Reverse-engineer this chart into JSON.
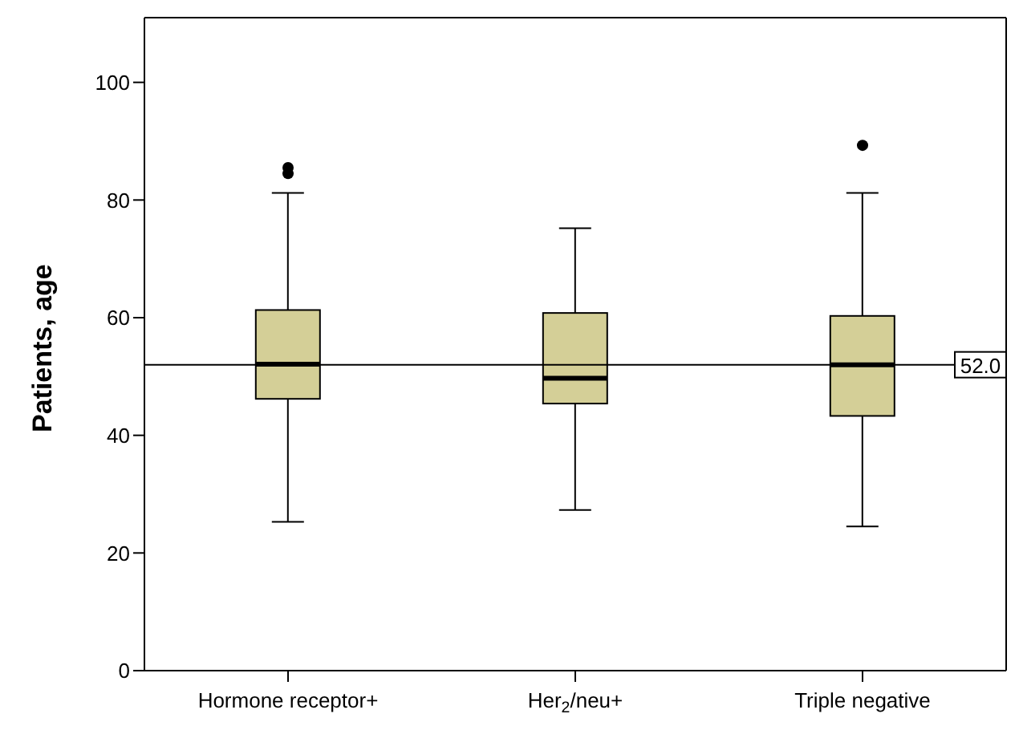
{
  "chart_data": {
    "type": "box",
    "ylabel": "Patients, age",
    "categories": [
      "Hormone receptor+",
      "Her$_{2}$/neu+",
      "Triple negative"
    ],
    "color": "#d4cf97",
    "boxes": [
      {
        "low": 25.3,
        "q1": 46.2,
        "median": 52.1,
        "q3": 61.3,
        "high": 81.2,
        "outliers": [
          84.5,
          85.5
        ]
      },
      {
        "low": 27.3,
        "q1": 45.4,
        "median": 49.7,
        "q3": 60.8,
        "high": 75.2
      },
      {
        "low": 24.5,
        "q1": 43.3,
        "median": 52.0,
        "q3": 60.3,
        "high": 81.2,
        "outliers": [
          89.3
        ]
      }
    ],
    "ylim": [
      0,
      111
    ],
    "yticks": [
      0,
      20,
      40,
      60,
      80,
      100
    ],
    "ref_lines": [
      {
        "axis": "y",
        "value": 52.0,
        "label": "52.0"
      }
    ]
  }
}
